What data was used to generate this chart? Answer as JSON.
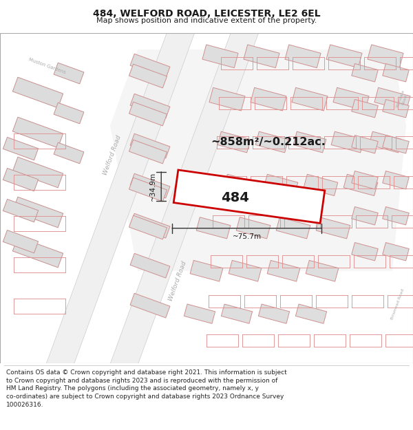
{
  "title": "484, WELFORD ROAD, LEICESTER, LE2 6EL",
  "subtitle": "Map shows position and indicative extent of the property.",
  "footer_line1": "Contains OS data © Crown copyright and database right 2021. This information is subject",
  "footer_line2": "to Crown copyright and database rights 2023 and is reproduced with the permission of",
  "footer_line3": "HM Land Registry. The polygons (including the associated geometry, namely x, y",
  "footer_line4": "co-ordinates) are subject to Crown copyright and database rights 2023 Ordnance Survey",
  "footer_line5": "100026316.",
  "area_label": "~858m²/~0.212ac.",
  "width_label": "~75.7m",
  "height_label": "~34.9m",
  "property_number": "484",
  "bg_color": "#f2f2f2",
  "road_fill": "#ffffff",
  "building_fill": "#e0e0e0",
  "building_edge": "#e08080",
  "property_fill": "#ffffff",
  "property_stroke": "#cc0000",
  "dim_color": "#333333",
  "road_label_color": "#999999",
  "text_color": "#1a1a1a",
  "title_fontsize": 10,
  "subtitle_fontsize": 8,
  "footer_fontsize": 6.5
}
